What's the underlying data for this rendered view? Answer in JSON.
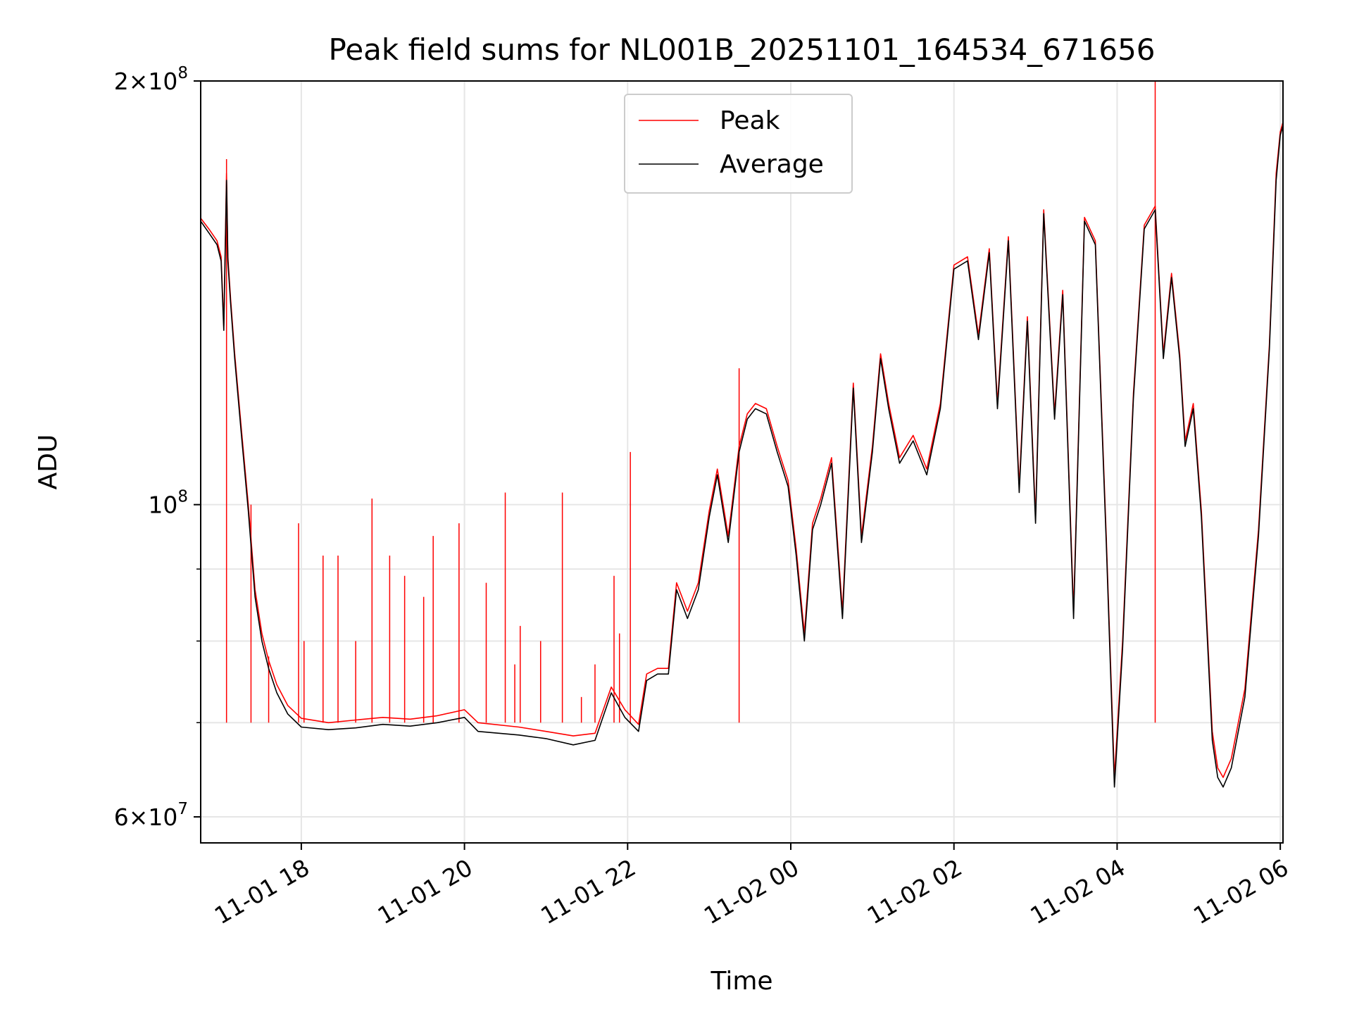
{
  "chart_data": {
    "type": "line",
    "title": "Peak field sums for NL001B_20251101_164534_671656",
    "xlabel": "Time",
    "ylabel": "ADU",
    "yscale": "log",
    "ylim": [
      57500000,
      200000000
    ],
    "xlim": [
      "2025-11-01 16:46",
      "2025-11-02 06:02"
    ],
    "grid": true,
    "legend": {
      "placement": "top-center"
    },
    "x_ticks": [
      {
        "t": "2025-11-01 18:00",
        "label": "11-01 18"
      },
      {
        "t": "2025-11-01 20:00",
        "label": "11-01 20"
      },
      {
        "t": "2025-11-01 22:00",
        "label": "11-01 22"
      },
      {
        "t": "2025-11-02 00:00",
        "label": "11-02 00"
      },
      {
        "t": "2025-11-02 02:00",
        "label": "11-02 02"
      },
      {
        "t": "2025-11-02 04:00",
        "label": "11-02 04"
      },
      {
        "t": "2025-11-02 06:00",
        "label": "11-02 06"
      }
    ],
    "y_major_ticks": [
      {
        "v": 60000000,
        "mant": "6",
        "exp": "7"
      },
      {
        "v": 100000000,
        "mant": "",
        "exp": "8"
      },
      {
        "v": 200000000,
        "mant": "2",
        "exp": "8"
      }
    ],
    "y_minor_ticks": [
      70000000,
      80000000,
      90000000
    ],
    "series": [
      {
        "name": "Peak",
        "color": "#ff0000",
        "points": [
          [
            "2025-11-01 16:46",
            159.8
          ],
          [
            "2025-11-01 16:52",
            157.0
          ],
          [
            "2025-11-01 16:58",
            154.0
          ],
          [
            "2025-11-01 17:01",
            150.0
          ],
          [
            "2025-11-01 17:03",
            134.0
          ],
          [
            "2025-11-01 17:05",
            172.0
          ],
          [
            "2025-11-01 17:06",
            150.0
          ],
          [
            "2025-11-01 17:08",
            140.0
          ],
          [
            "2025-11-01 17:11",
            128.0
          ],
          [
            "2025-11-01 17:16",
            113.0
          ],
          [
            "2025-11-01 17:21",
            100.0
          ],
          [
            "2025-11-01 17:26",
            87.0
          ],
          [
            "2025-11-01 17:31",
            81.0
          ],
          [
            "2025-11-01 17:36",
            77.5
          ],
          [
            "2025-11-01 17:42",
            74.5
          ],
          [
            "2025-11-01 17:50",
            72.0
          ],
          [
            "2025-11-01 18:00",
            70.5
          ],
          [
            "2025-11-01 18:20",
            70.0
          ],
          [
            "2025-11-01 18:40",
            70.3
          ],
          [
            "2025-11-01 19:00",
            70.6
          ],
          [
            "2025-11-01 19:20",
            70.4
          ],
          [
            "2025-11-01 19:40",
            70.8
          ],
          [
            "2025-11-01 20:00",
            71.5
          ],
          [
            "2025-11-01 20:10",
            70.0
          ],
          [
            "2025-11-01 20:40",
            69.5
          ],
          [
            "2025-11-01 21:00",
            69.0
          ],
          [
            "2025-11-01 21:20",
            68.5
          ],
          [
            "2025-11-01 21:36",
            68.8
          ],
          [
            "2025-11-01 21:48",
            74.2
          ],
          [
            "2025-11-01 21:58",
            71.5
          ],
          [
            "2025-11-01 22:08",
            69.8
          ],
          [
            "2025-11-01 22:14",
            75.8
          ],
          [
            "2025-11-01 22:22",
            76.5
          ],
          [
            "2025-11-01 22:30",
            76.5
          ],
          [
            "2025-11-01 22:36",
            88.0
          ],
          [
            "2025-11-01 22:44",
            84.0
          ],
          [
            "2025-11-01 22:52",
            88.0
          ],
          [
            "2025-11-01 23:00",
            99.0
          ],
          [
            "2025-11-01 23:06",
            106.0
          ],
          [
            "2025-11-01 23:14",
            95.0
          ],
          [
            "2025-11-01 23:22",
            110.0
          ],
          [
            "2025-11-01 23:28",
            116.0
          ],
          [
            "2025-11-01 23:34",
            118.0
          ],
          [
            "2025-11-01 23:42",
            117.0
          ],
          [
            "2025-11-01 23:50",
            110.0
          ],
          [
            "2025-11-01 23:58",
            104.0
          ],
          [
            "2025-11-02 00:04",
            93.0
          ],
          [
            "2025-11-02 00:10",
            81.0
          ],
          [
            "2025-11-02 00:16",
            97.0
          ],
          [
            "2025-11-02 00:22",
            101.0
          ],
          [
            "2025-11-02 00:30",
            108.0
          ],
          [
            "2025-11-02 00:38",
            84.0
          ],
          [
            "2025-11-02 00:46",
            122.0
          ],
          [
            "2025-11-02 00:52",
            95.0
          ],
          [
            "2025-11-02 01:00",
            110.0
          ],
          [
            "2025-11-02 01:06",
            128.0
          ],
          [
            "2025-11-02 01:12",
            118.0
          ],
          [
            "2025-11-02 01:20",
            108.0
          ],
          [
            "2025-11-02 01:30",
            112.0
          ],
          [
            "2025-11-02 01:40",
            106.0
          ],
          [
            "2025-11-02 01:50",
            118.0
          ],
          [
            "2025-11-02 02:00",
            148.0
          ],
          [
            "2025-11-02 02:10",
            150.0
          ],
          [
            "2025-11-02 02:18",
            132.0
          ],
          [
            "2025-11-02 02:26",
            152.0
          ],
          [
            "2025-11-02 02:32",
            118.0
          ],
          [
            "2025-11-02 02:40",
            155.0
          ],
          [
            "2025-11-02 02:48",
            103.0
          ],
          [
            "2025-11-02 02:54",
            136.0
          ],
          [
            "2025-11-02 03:00",
            98.0
          ],
          [
            "2025-11-02 03:06",
            162.0
          ],
          [
            "2025-11-02 03:14",
            116.0
          ],
          [
            "2025-11-02 03:20",
            142.0
          ],
          [
            "2025-11-02 03:28",
            84.0
          ],
          [
            "2025-11-02 03:36",
            160.0
          ],
          [
            "2025-11-02 03:44",
            154.0
          ],
          [
            "2025-11-02 03:52",
            95.0
          ],
          [
            "2025-11-02 03:58",
            64.0
          ],
          [
            "2025-11-02 04:04",
            80.0
          ],
          [
            "2025-11-02 04:12",
            120.0
          ],
          [
            "2025-11-02 04:20",
            158.0
          ],
          [
            "2025-11-02 04:28",
            163.0
          ],
          [
            "2025-11-02 04:34",
            128.0
          ],
          [
            "2025-11-02 04:40",
            146.0
          ],
          [
            "2025-11-02 04:46",
            128.0
          ],
          [
            "2025-11-02 04:50",
            111.0
          ],
          [
            "2025-11-02 04:56",
            118.0
          ],
          [
            "2025-11-02 05:02",
            99.0
          ],
          [
            "2025-11-02 05:10",
            69.0
          ],
          [
            "2025-11-02 05:14",
            65.0
          ],
          [
            "2025-11-02 05:18",
            64.0
          ],
          [
            "2025-11-02 05:24",
            66.0
          ],
          [
            "2025-11-02 05:34",
            74.0
          ],
          [
            "2025-11-02 05:44",
            96.0
          ],
          [
            "2025-11-02 05:52",
            130.0
          ],
          [
            "2025-11-02 05:57",
            172.0
          ],
          [
            "2025-11-02 06:00",
            184.0
          ],
          [
            "2025-11-02 06:02",
            187.0
          ]
        ]
      },
      {
        "name": "Average",
        "color": "#000000",
        "points": [
          [
            "2025-11-01 16:46",
            159.0
          ],
          [
            "2025-11-01 16:52",
            156.0
          ],
          [
            "2025-11-01 16:58",
            153.0
          ],
          [
            "2025-11-01 17:01",
            149.0
          ],
          [
            "2025-11-01 17:03",
            133.0
          ],
          [
            "2025-11-01 17:05",
            170.0
          ],
          [
            "2025-11-01 17:06",
            149.0
          ],
          [
            "2025-11-01 17:08",
            139.0
          ],
          [
            "2025-11-01 17:11",
            127.0
          ],
          [
            "2025-11-01 17:16",
            112.0
          ],
          [
            "2025-11-01 17:21",
            99.0
          ],
          [
            "2025-11-01 17:26",
            86.0
          ],
          [
            "2025-11-01 17:31",
            80.0
          ],
          [
            "2025-11-01 17:36",
            76.5
          ],
          [
            "2025-11-01 17:42",
            73.5
          ],
          [
            "2025-11-01 17:50",
            71.0
          ],
          [
            "2025-11-01 18:00",
            69.5
          ],
          [
            "2025-11-01 18:20",
            69.2
          ],
          [
            "2025-11-01 18:40",
            69.4
          ],
          [
            "2025-11-01 19:00",
            69.8
          ],
          [
            "2025-11-01 19:20",
            69.6
          ],
          [
            "2025-11-01 19:40",
            70.0
          ],
          [
            "2025-11-01 20:00",
            70.6
          ],
          [
            "2025-11-01 20:10",
            69.0
          ],
          [
            "2025-11-01 20:40",
            68.6
          ],
          [
            "2025-11-01 21:00",
            68.2
          ],
          [
            "2025-11-01 21:20",
            67.5
          ],
          [
            "2025-11-01 21:36",
            68.0
          ],
          [
            "2025-11-01 21:48",
            73.5
          ],
          [
            "2025-11-01 21:58",
            70.6
          ],
          [
            "2025-11-01 22:08",
            69.0
          ],
          [
            "2025-11-01 22:14",
            75.0
          ],
          [
            "2025-11-01 22:22",
            75.8
          ],
          [
            "2025-11-01 22:30",
            75.8
          ],
          [
            "2025-11-01 22:36",
            87.0
          ],
          [
            "2025-11-01 22:44",
            83.0
          ],
          [
            "2025-11-01 22:52",
            87.0
          ],
          [
            "2025-11-01 23:00",
            98.0
          ],
          [
            "2025-11-01 23:06",
            105.0
          ],
          [
            "2025-11-01 23:14",
            94.0
          ],
          [
            "2025-11-01 23:22",
            109.0
          ],
          [
            "2025-11-01 23:28",
            115.0
          ],
          [
            "2025-11-01 23:34",
            117.0
          ],
          [
            "2025-11-01 23:42",
            116.0
          ],
          [
            "2025-11-01 23:50",
            109.0
          ],
          [
            "2025-11-01 23:58",
            103.0
          ],
          [
            "2025-11-02 00:04",
            92.0
          ],
          [
            "2025-11-02 00:10",
            80.0
          ],
          [
            "2025-11-02 00:16",
            96.0
          ],
          [
            "2025-11-02 00:22",
            100.0
          ],
          [
            "2025-11-02 00:30",
            107.0
          ],
          [
            "2025-11-02 00:38",
            83.0
          ],
          [
            "2025-11-02 00:46",
            121.0
          ],
          [
            "2025-11-02 00:52",
            94.0
          ],
          [
            "2025-11-02 01:00",
            109.0
          ],
          [
            "2025-11-02 01:06",
            127.0
          ],
          [
            "2025-11-02 01:12",
            117.0
          ],
          [
            "2025-11-02 01:20",
            107.0
          ],
          [
            "2025-11-02 01:30",
            111.0
          ],
          [
            "2025-11-02 01:40",
            105.0
          ],
          [
            "2025-11-02 01:50",
            117.0
          ],
          [
            "2025-11-02 02:00",
            147.0
          ],
          [
            "2025-11-02 02:10",
            149.0
          ],
          [
            "2025-11-02 02:18",
            131.0
          ],
          [
            "2025-11-02 02:26",
            151.0
          ],
          [
            "2025-11-02 02:32",
            117.0
          ],
          [
            "2025-11-02 02:40",
            154.0
          ],
          [
            "2025-11-02 02:48",
            102.0
          ],
          [
            "2025-11-02 02:54",
            135.0
          ],
          [
            "2025-11-02 03:00",
            97.0
          ],
          [
            "2025-11-02 03:06",
            161.0
          ],
          [
            "2025-11-02 03:14",
            115.0
          ],
          [
            "2025-11-02 03:20",
            141.0
          ],
          [
            "2025-11-02 03:28",
            83.0
          ],
          [
            "2025-11-02 03:36",
            159.0
          ],
          [
            "2025-11-02 03:44",
            153.0
          ],
          [
            "2025-11-02 03:52",
            94.0
          ],
          [
            "2025-11-02 03:58",
            63.0
          ],
          [
            "2025-11-02 04:04",
            79.0
          ],
          [
            "2025-11-02 04:12",
            119.0
          ],
          [
            "2025-11-02 04:20",
            157.0
          ],
          [
            "2025-11-02 04:28",
            162.0
          ],
          [
            "2025-11-02 04:34",
            127.0
          ],
          [
            "2025-11-02 04:40",
            145.0
          ],
          [
            "2025-11-02 04:46",
            127.0
          ],
          [
            "2025-11-02 04:50",
            110.0
          ],
          [
            "2025-11-02 04:56",
            117.0
          ],
          [
            "2025-11-02 05:02",
            98.0
          ],
          [
            "2025-11-02 05:10",
            68.0
          ],
          [
            "2025-11-02 05:14",
            64.0
          ],
          [
            "2025-11-02 05:18",
            63.0
          ],
          [
            "2025-11-02 05:24",
            65.0
          ],
          [
            "2025-11-02 05:34",
            73.0
          ],
          [
            "2025-11-02 05:44",
            95.0
          ],
          [
            "2025-11-02 05:52",
            129.0
          ],
          [
            "2025-11-02 05:57",
            170.0
          ],
          [
            "2025-11-02 06:00",
            183.0
          ],
          [
            "2025-11-02 06:02",
            186.0
          ]
        ]
      }
    ],
    "value_unit_multiplier": 1000000,
    "peak_spikes": [
      [
        "2025-11-01 17:05",
        176.0
      ],
      [
        "2025-11-01 17:23",
        100.0
      ],
      [
        "2025-11-01 17:36",
        78.0
      ],
      [
        "2025-11-01 17:58",
        97.0
      ],
      [
        "2025-11-01 18:02",
        80.0
      ],
      [
        "2025-11-01 18:16",
        92.0
      ],
      [
        "2025-11-01 18:27",
        92.0
      ],
      [
        "2025-11-01 18:40",
        80.0
      ],
      [
        "2025-11-01 18:52",
        101.0
      ],
      [
        "2025-11-01 19:05",
        92.0
      ],
      [
        "2025-11-01 19:16",
        89.0
      ],
      [
        "2025-11-01 19:30",
        86.0
      ],
      [
        "2025-11-01 19:37",
        95.0
      ],
      [
        "2025-11-01 19:56",
        97.0
      ],
      [
        "2025-11-01 20:16",
        88.0
      ],
      [
        "2025-11-01 20:30",
        102.0
      ],
      [
        "2025-11-01 20:37",
        77.0
      ],
      [
        "2025-11-01 20:41",
        82.0
      ],
      [
        "2025-11-01 20:56",
        80.0
      ],
      [
        "2025-11-01 21:12",
        102.0
      ],
      [
        "2025-11-01 21:26",
        73.0
      ],
      [
        "2025-11-01 21:36",
        77.0
      ],
      [
        "2025-11-01 21:50",
        89.0
      ],
      [
        "2025-11-01 21:54",
        81.0
      ],
      [
        "2025-11-01 22:02",
        109.0
      ],
      [
        "2025-11-01 23:22",
        125.0
      ],
      [
        "2025-11-02 04:28",
        200.0
      ]
    ]
  }
}
